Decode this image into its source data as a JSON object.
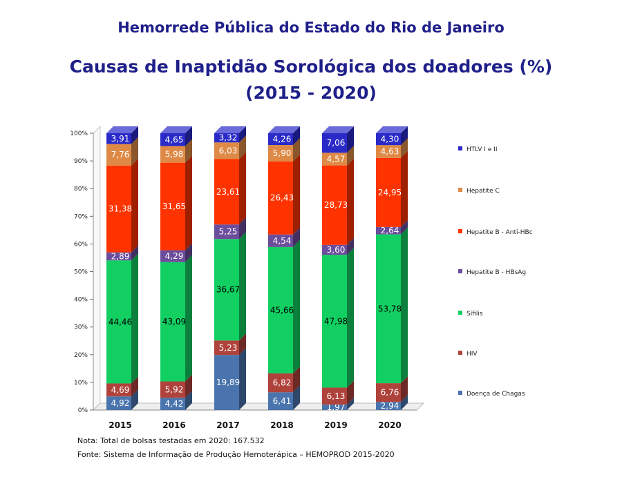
{
  "header": {
    "organization": "Hemorrede Pública do Estado do Rio de Janeiro",
    "title": "Causas de Inaptidão Sorológica dos doadores (%)",
    "subtitle": "(2015 - 2020)"
  },
  "notes": {
    "note": "Nota: Total de bolsas testadas em 2020: 167.532",
    "source": "Fonte: Sistema de Informação de Produção Hemoterápica – HEMOPROD 2015-2020"
  },
  "colors": {
    "Doença de Chagas": "#4a74ad",
    "HIV": "#b0423c",
    "Sífilis": "#12cf62",
    "Hepatite B - HBsAg": "#6c4d9c",
    "Hepatite B - Anti-HBc": "#ff3300",
    "Hepatite C": "#de8a46",
    "HTLV I e II": "#2a2ac8"
  },
  "chart_data": {
    "type": "bar",
    "stacked": true,
    "percent_stacked": true,
    "categories": [
      "2015",
      "2016",
      "2017",
      "2018",
      "2019",
      "2020"
    ],
    "series": [
      {
        "name": "Doença de Chagas",
        "values": [
          4.92,
          4.42,
          19.89,
          6.41,
          1.97,
          2.94
        ]
      },
      {
        "name": "HIV",
        "values": [
          4.69,
          5.92,
          5.23,
          6.82,
          6.13,
          6.76
        ]
      },
      {
        "name": "Sífilis",
        "values": [
          44.46,
          43.09,
          36.67,
          45.66,
          47.98,
          53.78
        ]
      },
      {
        "name": "Hepatite B - HBsAg",
        "values": [
          2.89,
          4.29,
          5.25,
          4.54,
          3.6,
          2.64
        ]
      },
      {
        "name": "Hepatite B - Anti-HBc",
        "values": [
          31.38,
          31.65,
          23.61,
          26.43,
          28.73,
          24.95
        ]
      },
      {
        "name": "Hepatite C",
        "values": [
          7.76,
          5.98,
          6.03,
          5.9,
          4.57,
          4.63
        ]
      },
      {
        "name": "HTLV I e II",
        "values": [
          3.91,
          4.65,
          3.32,
          4.26,
          7.06,
          4.3
        ]
      }
    ],
    "data_labels": [
      [
        "4,92",
        "4,42",
        "19,89",
        "6,41",
        "1,97",
        "2,94"
      ],
      [
        "4,69",
        "5,92",
        "5,23",
        "6,82",
        "6,13",
        "6,76"
      ],
      [
        "44,46",
        "43,09",
        "36,67",
        "45,66",
        "47,98",
        "53,78"
      ],
      [
        "2,89",
        "4,29",
        "5,25",
        "4,54",
        "3,60",
        "2,64"
      ],
      [
        "31,38",
        "31,65",
        "23,61",
        "26,43",
        "28,73",
        "24,95"
      ],
      [
        "7,76",
        "5,98",
        "6,03",
        "5,90",
        "4,57",
        "4,63"
      ],
      [
        "3,91",
        "4,65",
        "3,32",
        "4,26",
        "7,06",
        "4,30"
      ]
    ],
    "yticks": [
      "0%",
      "10%",
      "20%",
      "30%",
      "40%",
      "50%",
      "60%",
      "70%",
      "80%",
      "90%",
      "100%"
    ],
    "ylim": [
      0,
      100
    ],
    "legend_position": "right",
    "legend_order": [
      "HTLV I e II",
      "Hepatite C",
      "Hepatite B - Anti-HBc",
      "Hepatite B - HBsAg",
      "Sífilis",
      "HIV",
      "Doença de Chagas"
    ]
  }
}
